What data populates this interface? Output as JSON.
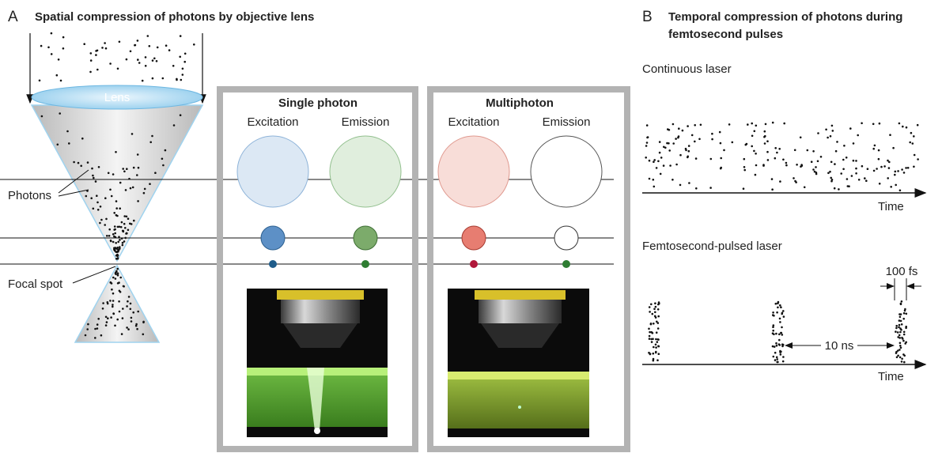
{
  "panel_a": {
    "label": "A",
    "title": "Spatial compression of photons by objective lens",
    "lens": "Lens",
    "photons": "Photons",
    "focal_spot": "Focal spot",
    "single_photon": {
      "title": "Single photon",
      "excitation": "Excitation",
      "emission": "Emission"
    },
    "multiphoton": {
      "title": "Multiphoton",
      "excitation": "Excitation",
      "emission": "Emission"
    }
  },
  "panel_b": {
    "label": "B",
    "title_lines": [
      "Temporal compression of photons during",
      "femtosecond pulses"
    ],
    "continuous": {
      "title": "Continuous laser",
      "axis_label": "Time"
    },
    "pulsed": {
      "title": "Femtosecond-pulsed laser",
      "pulse_width": "100 fs",
      "interval": "10 ns",
      "axis_label": "Time"
    }
  }
}
